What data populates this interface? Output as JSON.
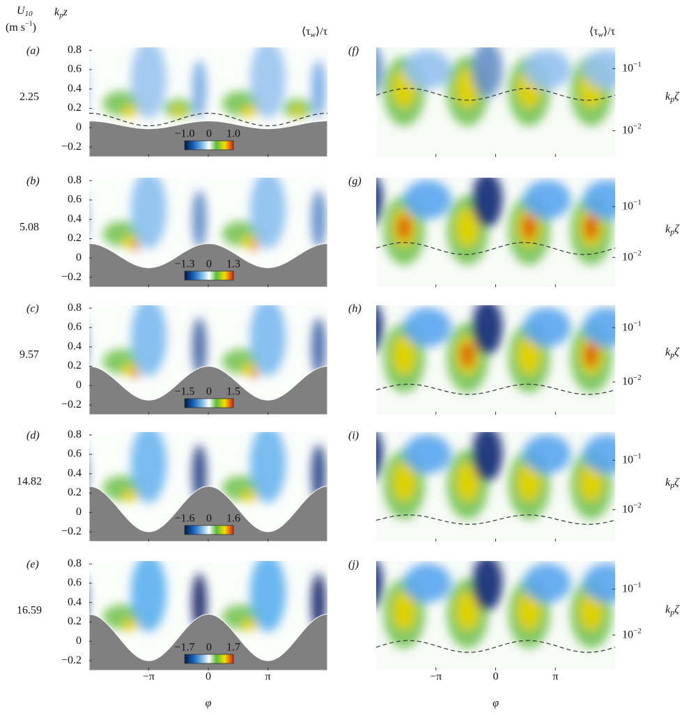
{
  "header": {
    "u_symbol": "U",
    "u_subscript": "10",
    "unit_open": "(m s",
    "unit_exponent": "−1",
    "unit_close": ")",
    "left_ylabel": {
      "symbol": "k",
      "subscript": "p",
      "var": "z"
    },
    "colorbar_title": {
      "open": "⟨τ",
      "subscript": "w",
      "close": "⟩/τ"
    }
  },
  "xaxis": {
    "label": "φ",
    "xlim": [
      -6.28,
      6.28
    ],
    "xticks": [
      {
        "value": -3.1416,
        "label": "−π"
      },
      0,
      {
        "value": 3.1416,
        "label": "π"
      }
    ]
  },
  "left_ylim": [
    -0.3,
    0.83
  ],
  "left_yticks": [
    0.8,
    0.6,
    0.4,
    0.2,
    0,
    {
      "value": -0.2,
      "label": "−0.2"
    }
  ],
  "right_ylabel": {
    "symbol": "k",
    "subscript": "p",
    "var": "ζ"
  },
  "right_yticks": [
    {
      "value": 0.1,
      "label": "10",
      "exponent": "−1"
    },
    {
      "value": 0.01,
      "label": "10",
      "exponent": "−2"
    }
  ],
  "left_panels": [
    {
      "label": "(a)",
      "u10": 2.25,
      "colorbar": {
        "lim": [
          -1.0,
          1.0
        ],
        "ticks": [
          {
            "value": -1.0,
            "label": "−1.0"
          },
          0,
          {
            "value": 1.0,
            "label": "1.0"
          }
        ]
      },
      "surface": {
        "crest": 0.07,
        "trough": -0.01
      },
      "dashed": {
        "crest": 0.15,
        "trough": 0.02
      }
    },
    {
      "label": "(b)",
      "u10": 5.08,
      "colorbar": {
        "lim": [
          -1.3,
          1.3
        ],
        "ticks": [
          {
            "value": -1.3,
            "label": "−1.3"
          },
          0,
          1.3
        ]
      },
      "surface": {
        "crest": 0.15,
        "trough": -0.1
      }
    },
    {
      "label": "(c)",
      "u10": 9.57,
      "colorbar": {
        "lim": [
          -1.5,
          1.5
        ],
        "ticks": [
          {
            "value": -1.5,
            "label": "−1.5"
          },
          0,
          1.5
        ]
      },
      "surface": {
        "crest": 0.2,
        "trough": -0.15
      }
    },
    {
      "label": "(d)",
      "u10": 14.82,
      "colorbar": {
        "lim": [
          -1.6,
          1.6
        ],
        "ticks": [
          {
            "value": -1.6,
            "label": "−1.6"
          },
          0,
          1.6
        ]
      },
      "surface": {
        "crest": 0.27,
        "trough": -0.2
      }
    },
    {
      "label": "(e)",
      "u10": 16.59,
      "colorbar": {
        "lim": [
          -1.7,
          1.7
        ],
        "ticks": [
          {
            "value": -1.7,
            "label": "−1.7"
          },
          0,
          1.7
        ]
      },
      "surface": {
        "crest": 0.28,
        "trough": -0.2
      }
    }
  ],
  "right_panels": [
    {
      "label": "(f)",
      "ylim": [
        0.0038,
        0.22
      ],
      "dashed": {
        "crest": 0.048,
        "trough": 0.031,
        "crest_at": 1.7
      }
    },
    {
      "label": "(g)",
      "ylim": [
        0.0026,
        0.37
      ],
      "dashed": {
        "crest": 0.0196,
        "trough": 0.0114,
        "crest_at": 1.5
      }
    },
    {
      "label": "(h)",
      "ylim": [
        0.0025,
        0.26
      ],
      "dashed": {
        "crest": 0.0091,
        "trough": 0.0059,
        "crest_at": 1.7
      }
    },
    {
      "label": "(i)",
      "ylim": [
        0.0023,
        0.37
      ],
      "dashed": {
        "crest": 0.0079,
        "trough": 0.0051,
        "crest_at": 1.7
      }
    },
    {
      "label": "(j)",
      "ylim": [
        0.0017,
        0.41
      ],
      "dashed": {
        "crest": 0.0076,
        "trough": 0.0042,
        "crest_at": 1.7
      }
    }
  ]
}
